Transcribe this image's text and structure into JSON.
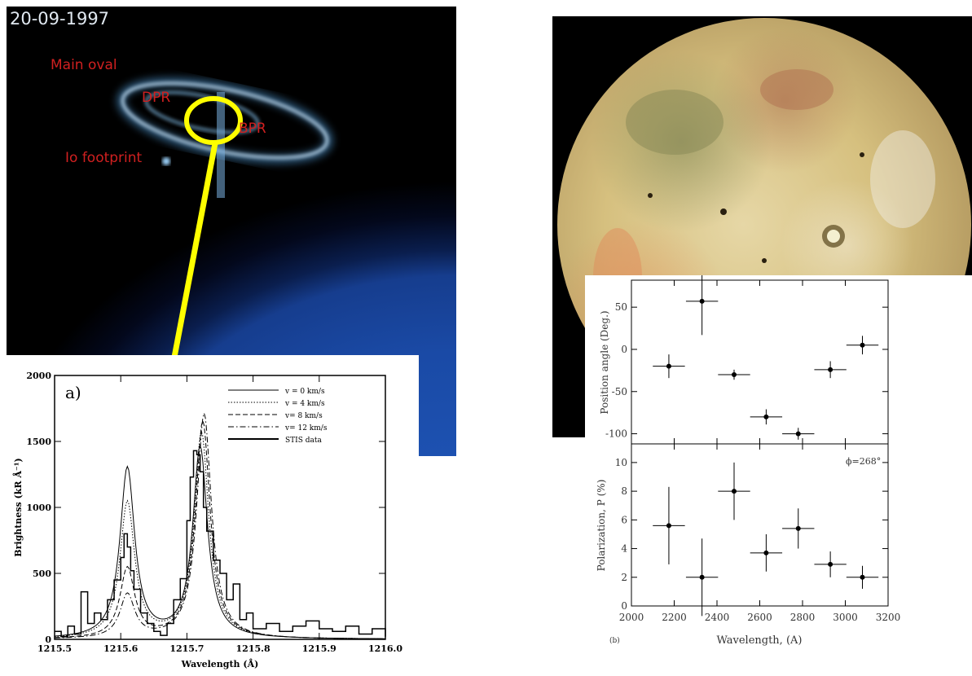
{
  "aurora_image": {
    "date": "20-09-1997",
    "labels": {
      "main_oval": "Main oval",
      "dpr": "DPR",
      "bpr": "BPR",
      "io_footprint": "Io footprint"
    },
    "colors": {
      "label": "#d02020",
      "highlight": "#ffff00"
    }
  },
  "chart_data": [
    {
      "type": "line",
      "panel_label": "a)",
      "xlabel": "Wavelength (Å)",
      "ylabel": "Brightness (kR Å⁻¹)",
      "xlim": [
        1215.5,
        1216.0
      ],
      "ylim": [
        0,
        2000
      ],
      "xticks": [
        "1215.5",
        "1215.6",
        "1215.7",
        "1215.8",
        "1215.9",
        "1216.0"
      ],
      "yticks": [
        "0",
        "500",
        "1000",
        "1500",
        "2000"
      ],
      "legend_position": "top-right",
      "legend": [
        "v = 0 km/s",
        "v = 4 km/s",
        "v= 8 km/s",
        "v= 12 km/s",
        "STIS data"
      ],
      "series": [
        {
          "name": "v = 0 km/s",
          "style": "solid",
          "peaks": [
            {
              "x": 1215.61,
              "y": 1290
            },
            {
              "x": 1215.72,
              "y": 1450
            }
          ]
        },
        {
          "name": "v = 4 km/s",
          "style": "dotted",
          "peaks": [
            {
              "x": 1215.61,
              "y": 1030
            },
            {
              "x": 1215.722,
              "y": 1560
            }
          ]
        },
        {
          "name": "v= 8 km/s",
          "style": "dashed",
          "peaks": [
            {
              "x": 1215.61,
              "y": 530
            },
            {
              "x": 1215.724,
              "y": 1650
            }
          ]
        },
        {
          "name": "v= 12 km/s",
          "style": "dashdot",
          "peaks": [
            {
              "x": 1215.61,
              "y": 330
            },
            {
              "x": 1215.726,
              "y": 1710
            }
          ]
        },
        {
          "name": "STIS data",
          "style": "step",
          "x": [
            1215.5,
            1215.51,
            1215.52,
            1215.53,
            1215.54,
            1215.55,
            1215.56,
            1215.57,
            1215.58,
            1215.59,
            1215.6,
            1215.605,
            1215.61,
            1215.615,
            1215.62,
            1215.63,
            1215.64,
            1215.65,
            1215.66,
            1215.67,
            1215.68,
            1215.69,
            1215.7,
            1215.705,
            1215.71,
            1215.715,
            1215.72,
            1215.725,
            1215.73,
            1215.74,
            1215.75,
            1215.76,
            1215.77,
            1215.78,
            1215.79,
            1215.8,
            1215.82,
            1215.84,
            1215.86,
            1215.88,
            1215.9,
            1215.92,
            1215.94,
            1215.96,
            1215.98,
            1216.0
          ],
          "y": [
            60,
            20,
            100,
            40,
            360,
            120,
            200,
            150,
            300,
            450,
            620,
            800,
            700,
            520,
            380,
            200,
            120,
            60,
            30,
            120,
            300,
            460,
            900,
            1230,
            1430,
            1400,
            1270,
            1000,
            820,
            600,
            500,
            300,
            420,
            150,
            200,
            80,
            120,
            60,
            100,
            140,
            80,
            60,
            100,
            40,
            80,
            20
          ]
        }
      ]
    },
    {
      "type": "scatter",
      "panel": "top",
      "ylabel": "Position angle (Deg.)",
      "yticks": [
        "50",
        "0",
        "-50",
        "-100"
      ],
      "ylim": [
        -112,
        82
      ],
      "xlim": [
        2000,
        3200
      ],
      "points": [
        {
          "x": 2175,
          "y": -20,
          "xerr": 75,
          "yerr": 14
        },
        {
          "x": 2330,
          "y": 57,
          "xerr": 75,
          "yerr": 40
        },
        {
          "x": 2480,
          "y": -30,
          "xerr": 75,
          "yerr": 6
        },
        {
          "x": 2630,
          "y": -80,
          "xerr": 75,
          "yerr": 9
        },
        {
          "x": 2780,
          "y": -100,
          "xerr": 75,
          "yerr": 7
        },
        {
          "x": 2930,
          "y": -24,
          "xerr": 75,
          "yerr": 10
        },
        {
          "x": 3080,
          "y": 5,
          "xerr": 75,
          "yerr": 11
        }
      ]
    },
    {
      "type": "scatter",
      "panel": "bottom",
      "panel_label": "(b)",
      "annotation": "ϕ=268°",
      "xlabel": "Wavelength, (A)",
      "ylabel": "Polarization, P (%)",
      "xlim": [
        2000,
        3200
      ],
      "ylim": [
        0,
        11.3
      ],
      "xticks": [
        "2000",
        "2200",
        "2400",
        "2600",
        "2800",
        "3000",
        "3200"
      ],
      "yticks": [
        "0",
        "2",
        "4",
        "6",
        "8",
        "10"
      ],
      "points": [
        {
          "x": 2175,
          "y": 5.6,
          "xerr": 75,
          "yerr": 2.7
        },
        {
          "x": 2330,
          "y": 2.0,
          "xerr": 75,
          "yerr": 2.7
        },
        {
          "x": 2480,
          "y": 8.0,
          "xerr": 75,
          "yerr": 2.0
        },
        {
          "x": 2630,
          "y": 3.7,
          "xerr": 75,
          "yerr": 1.3
        },
        {
          "x": 2780,
          "y": 5.4,
          "xerr": 75,
          "yerr": 1.4
        },
        {
          "x": 2930,
          "y": 2.9,
          "xerr": 75,
          "yerr": 0.9
        },
        {
          "x": 3080,
          "y": 2.0,
          "xerr": 75,
          "yerr": 0.8
        }
      ]
    }
  ]
}
